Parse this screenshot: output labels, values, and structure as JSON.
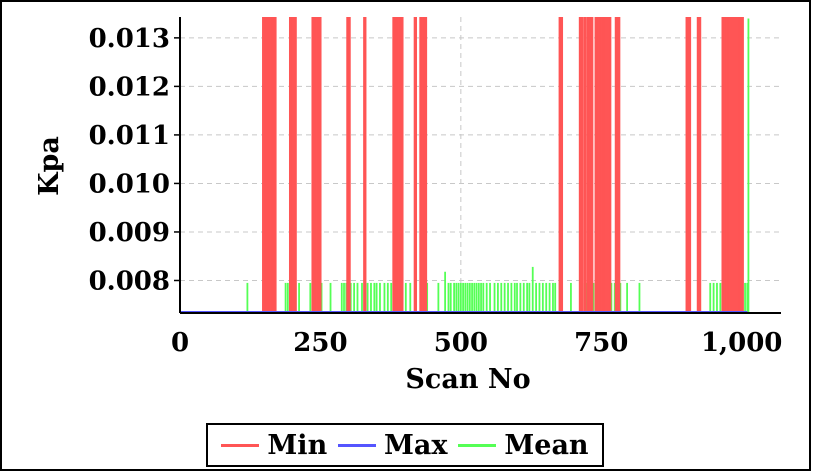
{
  "chart_data": {
    "type": "line",
    "xlabel": "Scan No",
    "ylabel": "Kpa",
    "xlim": [
      0,
      1070
    ],
    "ylim": [
      0.00733,
      0.01343
    ],
    "x_ticks": [
      0,
      250,
      500,
      750,
      1000
    ],
    "x_tick_labels": [
      "0",
      "250",
      "500",
      "750",
      "1,000"
    ],
    "y_ticks": [
      0.008,
      0.009,
      0.01,
      0.011,
      0.012,
      0.013
    ],
    "y_tick_labels": [
      "0.008",
      "0.009",
      "0.010",
      "0.011",
      "0.012",
      "0.013"
    ],
    "grid": true,
    "legend_position": "bottom",
    "series": [
      {
        "name": "Min",
        "color": "#ff5555",
        "baseline": 0.00735,
        "peak": 0.01343,
        "spike_x": [
          148,
          150,
          152,
          154,
          156,
          158,
          160,
          162,
          164,
          166,
          168,
          170,
          196,
          198,
          200,
          202,
          204,
          206,
          236,
          238,
          240,
          242,
          244,
          246,
          248,
          250,
          298,
          300,
          302,
          328,
          330,
          380,
          382,
          384,
          386,
          388,
          390,
          392,
          394,
          396,
          418,
          420,
          428,
          430,
          432,
          434,
          436,
          438,
          676,
          678,
          680,
          712,
          714,
          716,
          720,
          722,
          726,
          728,
          730,
          732,
          734,
          740,
          742,
          744,
          746,
          748,
          750,
          752,
          754,
          756,
          758,
          760,
          762,
          764,
          766,
          776,
          778,
          780,
          782,
          902,
          904,
          906,
          908,
          922,
          924,
          926,
          966,
          968,
          970,
          972,
          974,
          976,
          978,
          980,
          982,
          984,
          986,
          988,
          990,
          992,
          994,
          996,
          998,
          1000,
          1002
        ]
      },
      {
        "name": "Max",
        "color": "#5555ff",
        "baseline": 0.00735,
        "peak": 0.00735,
        "spike_x": []
      },
      {
        "name": "Mean",
        "color": "#55ff55",
        "baseline": 0.00735,
        "peak_default": 0.00795,
        "spike_x": [
          120,
          188,
          192,
          196,
          202,
          206,
          212,
          232,
          252,
          268,
          288,
          292,
          296,
          300,
          304,
          310,
          316,
          324,
          334,
          340,
          346,
          350,
          356,
          364,
          370,
          376,
          384,
          390,
          394,
          402,
          410,
          420,
          428,
          436,
          440,
          460,
          472,
          478,
          482,
          488,
          492,
          496,
          500,
          504,
          508,
          512,
          516,
          520,
          524,
          528,
          532,
          536,
          540,
          546,
          552,
          560,
          566,
          572,
          578,
          584,
          590,
          596,
          600,
          606,
          612,
          618,
          622,
          628,
          634,
          640,
          646,
          652,
          658,
          664,
          668,
          676,
          696,
          716,
          720,
          724,
          730,
          736,
          744,
          750,
          756,
          760,
          764,
          768,
          774,
          784,
          796,
          818,
          944,
          950,
          956,
          962,
          1000,
          1006,
          1010,
          1012
        ],
        "spike_overrides": [
          {
            "x": 476,
            "y": 0.00845
          },
          {
            "x": 628,
            "y": 0.00828
          },
          {
            "x": 1012,
            "y": 0.0134
          },
          {
            "x": 472,
            "y": 0.00818
          }
        ]
      }
    ]
  }
}
